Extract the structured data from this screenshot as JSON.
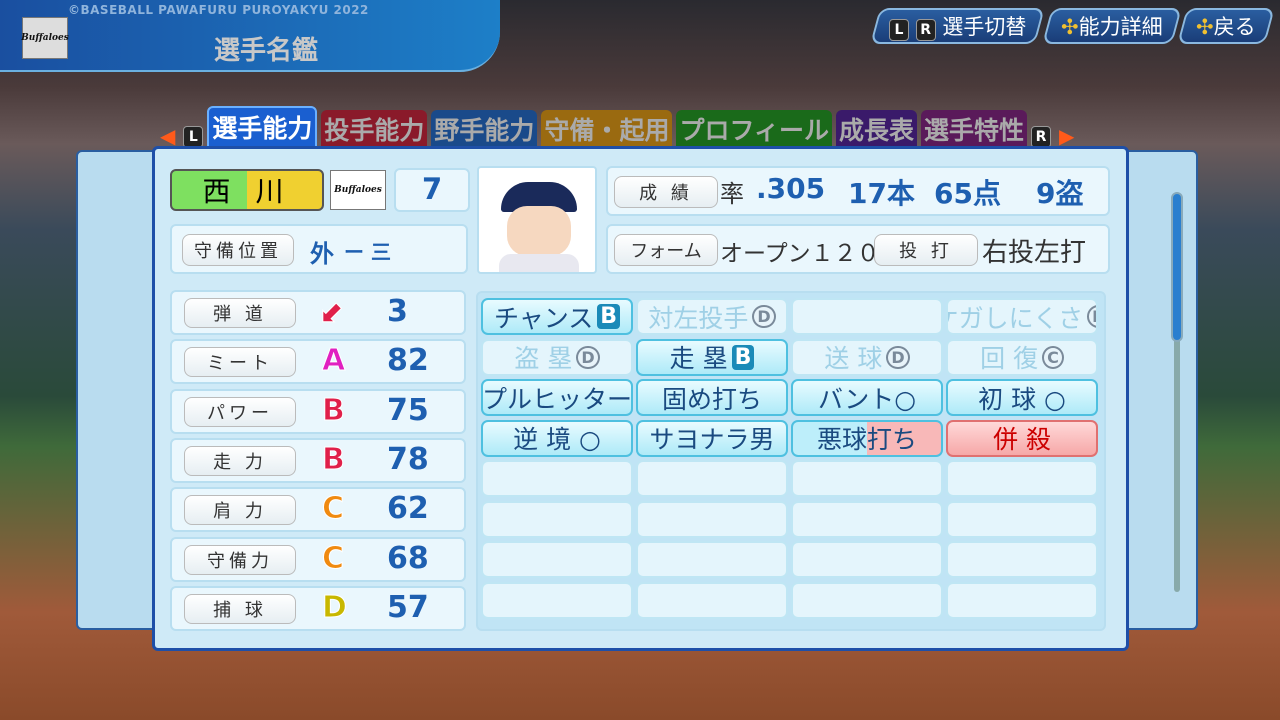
{
  "header": {
    "copyright": "©BASEBALL PAWAFURU PUROYAKYU 2022",
    "title": "選手名鑑",
    "team_logo": "Buffaloes"
  },
  "top_buttons": [
    {
      "keys": [
        "L",
        "R"
      ],
      "label": "選手切替"
    },
    {
      "icon": "button-cluster-icon",
      "label": "能力詳細"
    },
    {
      "icon": "button-cluster-icon",
      "label": "戻る"
    }
  ],
  "tabs": {
    "left_key": "L",
    "right_key": "R",
    "items": [
      {
        "label": "選手能力",
        "color": "#1a5fd0",
        "active": true
      },
      {
        "label": "投手能力",
        "color": "#8a1a2a"
      },
      {
        "label": "野手能力",
        "color": "#1a4a8a"
      },
      {
        "label": "守備・起用",
        "color": "#9a6a10"
      },
      {
        "label": "プロフィール",
        "color": "#1a6a1a"
      },
      {
        "label": "成長表",
        "color": "#3a1a6a"
      },
      {
        "label": "選手特性",
        "color": "#5a1a5a"
      }
    ]
  },
  "player": {
    "name": "西 川",
    "number": "7",
    "team": "Buffaloes",
    "position_label": "守備位置",
    "position_main": "外",
    "position_sub": "ー 三",
    "record_label": "成 績",
    "avg_label": "率",
    "avg": ".305",
    "hr": "17本",
    "rbi": "65点",
    "sb": "9盗",
    "form_label": "フォーム",
    "form": "オープン１２０",
    "bt_label": "投 打",
    "bt": "右投左打"
  },
  "stats": [
    {
      "label": "弾 道",
      "grade": "arrow",
      "value": "3",
      "color": "#e0204a"
    },
    {
      "label": "ミート",
      "grade": "A",
      "value": "82",
      "color": "#e020c0"
    },
    {
      "label": "パワー",
      "grade": "B",
      "value": "75",
      "color": "#e0204a"
    },
    {
      "label": "走 力",
      "grade": "B",
      "value": "78",
      "color": "#e0204a"
    },
    {
      "label": "肩 力",
      "grade": "C",
      "value": "62",
      "color": "#f08a10"
    },
    {
      "label": "守備力",
      "grade": "C",
      "value": "68",
      "color": "#f08a10"
    },
    {
      "label": "捕 球",
      "grade": "D",
      "value": "57",
      "color": "#c8b800"
    }
  ],
  "skills": [
    {
      "label": "チャンス",
      "grade": "B",
      "style": ""
    },
    {
      "label": "対左投手",
      "grade": "D",
      "style": "dim"
    },
    {
      "label": "",
      "style": "empty"
    },
    {
      "label": "ケガしにくさ",
      "grade": "D",
      "style": "dim"
    },
    {
      "label": "盗 塁",
      "grade": "D",
      "style": "dim"
    },
    {
      "label": "走 塁",
      "grade": "B",
      "style": ""
    },
    {
      "label": "送 球",
      "grade": "D",
      "style": "dim"
    },
    {
      "label": "回 復",
      "grade": "C",
      "style": "dim"
    },
    {
      "label": "プルヒッター",
      "style": ""
    },
    {
      "label": "固め打ち",
      "style": ""
    },
    {
      "label": "バント○",
      "style": ""
    },
    {
      "label": "初 球 ○",
      "style": ""
    },
    {
      "label": "逆 境 ○",
      "style": ""
    },
    {
      "label": "サヨナラ男",
      "style": ""
    },
    {
      "label": "悪球打ち",
      "style": "half"
    },
    {
      "label": "併 殺",
      "style": "red"
    }
  ]
}
